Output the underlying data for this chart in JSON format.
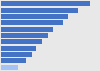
{
  "values": [
    0.95,
    0.82,
    0.72,
    0.66,
    0.56,
    0.5,
    0.44,
    0.38,
    0.33,
    0.27,
    0.18
  ],
  "bar_color": "#4472c4",
  "last_bar_color": "#a4c2f4",
  "background_color": "#e8e8e8",
  "plot_bg_color": "#e8e8e8",
  "xlim": [
    0,
    1.05
  ]
}
